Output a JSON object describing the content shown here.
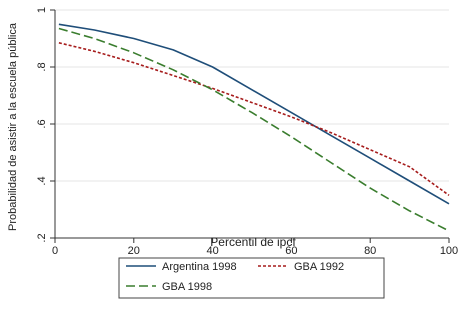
{
  "chart_data": {
    "type": "line",
    "title": "",
    "xlabel": "Percentil de ipcf",
    "ylabel": "Probabilidad de asistir a la escuela pública",
    "xlim": [
      0,
      100
    ],
    "ylim": [
      0.2,
      1.0
    ],
    "x_ticks": [
      {
        "value": 0,
        "label": "0"
      },
      {
        "value": 20,
        "label": "20"
      },
      {
        "value": 40,
        "label": "40"
      },
      {
        "value": 60,
        "label": "60"
      },
      {
        "value": 80,
        "label": "80"
      },
      {
        "value": 100,
        "label": "100"
      }
    ],
    "y_ticks": [
      {
        "value": 0.2,
        "label": ".2"
      },
      {
        "value": 0.4,
        "label": ".4"
      },
      {
        "value": 0.6,
        "label": ".6"
      },
      {
        "value": 0.8,
        "label": ".8"
      },
      {
        "value": 1.0,
        "label": "1"
      }
    ],
    "grid": true,
    "legend_position": "bottom",
    "x": [
      1,
      10,
      20,
      30,
      40,
      50,
      60,
      70,
      80,
      90,
      100
    ],
    "series": [
      {
        "name": "Argentina 1998",
        "color": "#1f4e79",
        "dash": "solid",
        "values": [
          0.95,
          0.93,
          0.9,
          0.86,
          0.8,
          0.72,
          0.64,
          0.56,
          0.48,
          0.4,
          0.32
        ]
      },
      {
        "name": "GBA 1992",
        "color": "#a61c1c",
        "dash": "short-dash",
        "values": [
          0.885,
          0.855,
          0.815,
          0.77,
          0.725,
          0.675,
          0.625,
          0.57,
          0.51,
          0.45,
          0.35
        ]
      },
      {
        "name": "GBA 1998",
        "color": "#3a7d2e",
        "dash": "long-dash",
        "values": [
          0.935,
          0.9,
          0.85,
          0.79,
          0.72,
          0.64,
          0.555,
          0.465,
          0.375,
          0.295,
          0.225
        ]
      }
    ]
  }
}
